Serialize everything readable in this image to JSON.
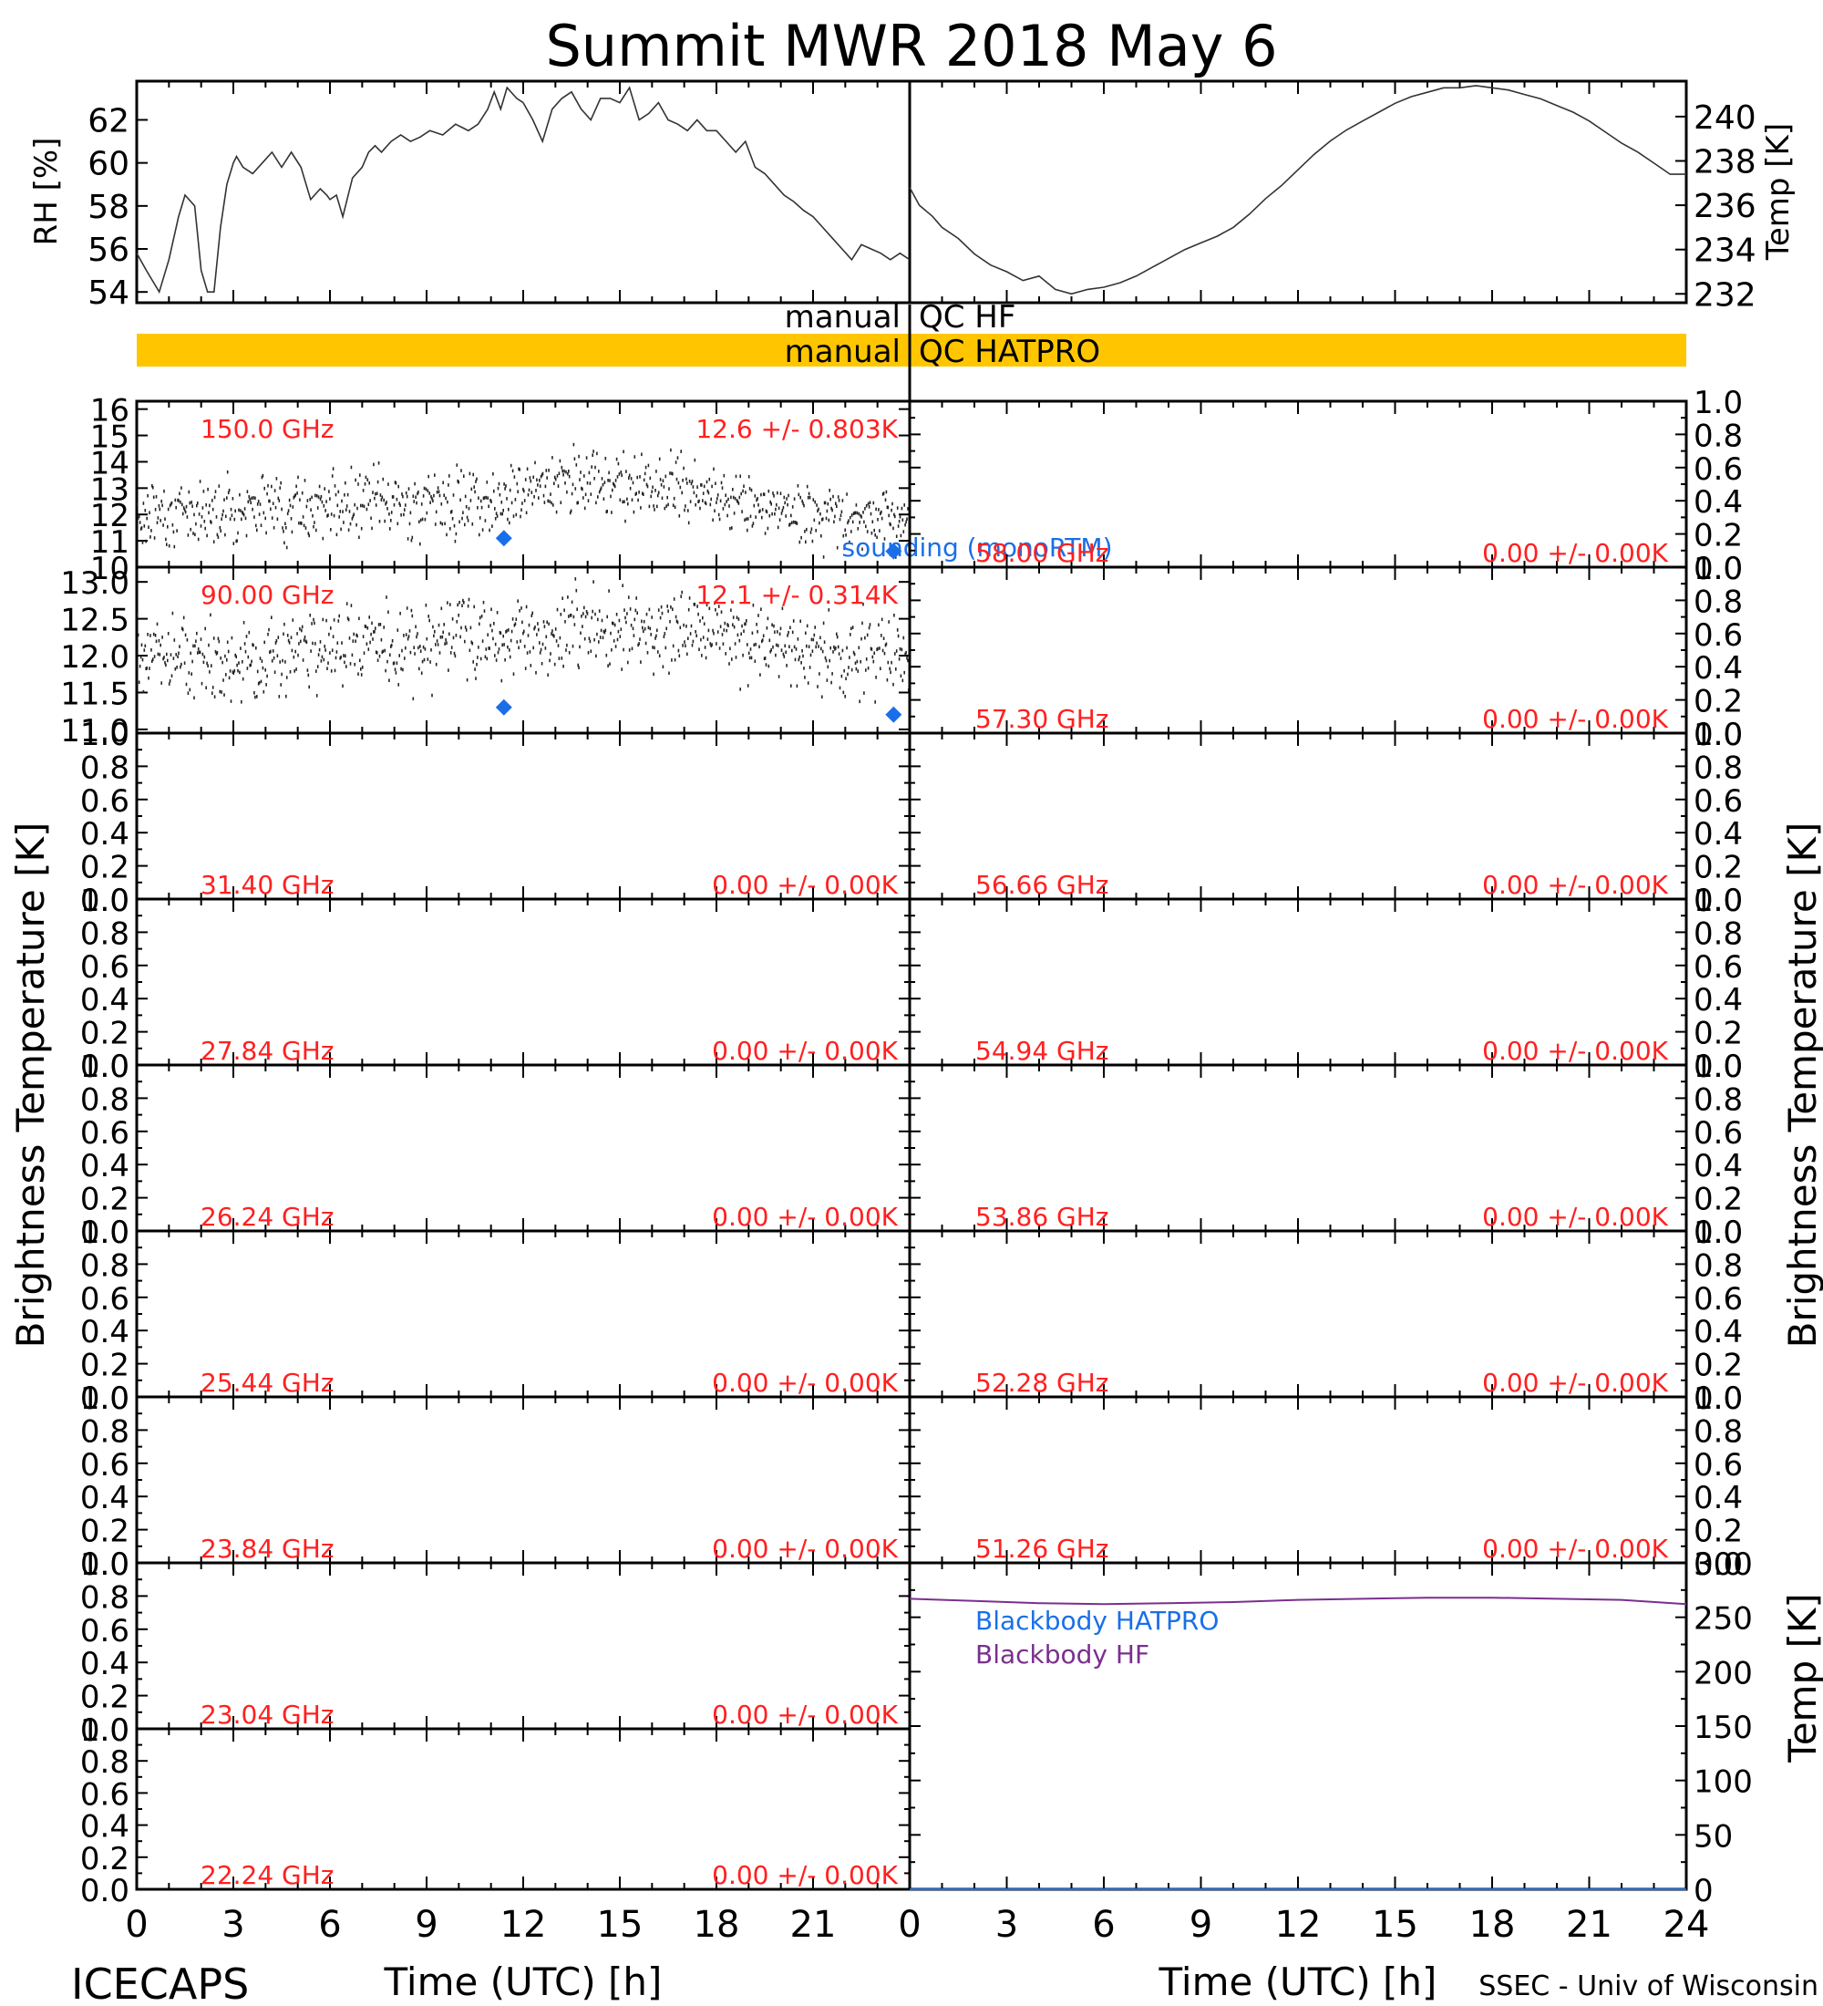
{
  "title": "Summit MWR 2018 May  6",
  "footer": {
    "left": "ICECAPS",
    "right": "SSEC - Univ of Wisconsin"
  },
  "colors": {
    "qc_bar": "#ffc600",
    "annotation": "#ff2020",
    "sounding": "#1a6fe8",
    "blackbody_hf": "#7a2f8f",
    "trace": "#000000"
  },
  "chart_data": [
    {
      "type": "line",
      "panel": "rh",
      "ylabel": "RH [%]",
      "ylim": [
        53.5,
        63.8
      ],
      "yticks": [
        54,
        56,
        58,
        60,
        62
      ],
      "xlim": [
        0,
        12
      ],
      "x": [
        0,
        0.3,
        0.7,
        1.0,
        1.3,
        1.5,
        1.8,
        2.0,
        2.2,
        2.4,
        2.6,
        2.8,
        3.0,
        3.1,
        3.3,
        3.6,
        3.9,
        4.2,
        4.5,
        4.8,
        5.1,
        5.4,
        5.7,
        5.9,
        6.0,
        6.2,
        6.4,
        6.7,
        7.0,
        7.2,
        7.4,
        7.6,
        7.9,
        8.2,
        8.5,
        8.8,
        9.1,
        9.5,
        9.9,
        10.3,
        10.6,
        10.9,
        11.1,
        11.3,
        11.5,
        11.8,
        12.0
      ],
      "y": [
        55.8,
        55.0,
        54.0,
        55.5,
        57.5,
        58.5,
        58.0,
        55.0,
        54.0,
        54.0,
        57.0,
        59.0,
        60.0,
        60.3,
        59.8,
        59.5,
        60.0,
        60.5,
        59.8,
        60.5,
        59.8,
        58.3,
        58.8,
        58.5,
        58.3,
        58.5,
        57.5,
        59.3,
        59.8,
        60.5,
        60.8,
        60.5,
        61.0,
        61.3,
        61.0,
        61.2,
        61.5,
        61.3,
        61.8,
        61.5,
        61.8,
        62.5,
        63.3,
        62.5,
        63.5,
        63.0,
        62.8
      ]
    },
    {
      "type": "line",
      "panel": "rh_right",
      "xlim": [
        12,
        24
      ],
      "ylim": [
        53.5,
        63.8
      ],
      "x": [
        12.0,
        12.3,
        12.6,
        12.9,
        13.2,
        13.5,
        13.8,
        14.1,
        14.4,
        14.7,
        15.0,
        15.3,
        15.6,
        15.9,
        16.2,
        16.5,
        16.8,
        17.1,
        17.4,
        17.7,
        18.0,
        18.3,
        18.6,
        18.9,
        19.2,
        19.5,
        19.8,
        20.1,
        20.4,
        20.7,
        21.0,
        21.3,
        21.6,
        21.9,
        22.2,
        22.5,
        22.8,
        23.1,
        23.4,
        23.7,
        24.0
      ],
      "y": [
        62.8,
        62.0,
        61.0,
        62.5,
        63.0,
        63.3,
        62.5,
        62.0,
        63.0,
        63.0,
        62.8,
        63.5,
        62.0,
        62.3,
        62.8,
        62.0,
        61.8,
        61.5,
        62.0,
        61.5,
        61.5,
        61.0,
        60.5,
        61.0,
        59.8,
        59.5,
        59.0,
        58.5,
        58.2,
        57.8,
        57.5,
        57.0,
        56.5,
        56.0,
        55.5,
        56.2,
        56.0,
        55.8,
        55.5,
        55.8,
        55.5
      ]
    },
    {
      "type": "line",
      "panel": "temp",
      "ylabel": "Temp [K]",
      "ylim": [
        231.6,
        241.6
      ],
      "yticks": [
        232,
        234,
        236,
        238,
        240
      ],
      "xlim": [
        0,
        24
      ],
      "x": [
        0,
        0.3,
        0.7,
        1.0,
        1.5,
        2.0,
        2.5,
        3.0,
        3.5,
        4.0,
        4.5,
        5.0,
        5.5,
        6.0,
        6.5,
        7.0,
        7.5,
        8.0,
        8.5,
        9.0,
        9.5,
        10.0,
        10.5,
        11.0,
        11.5,
        12.0,
        12.5,
        13.0,
        13.5,
        14.0,
        14.5,
        15.0,
        15.5,
        16.0,
        16.5,
        17.0,
        17.5,
        18.0,
        18.5,
        19.0,
        19.5,
        20.0,
        20.5,
        21.0,
        21.5,
        22.0,
        22.5,
        23.0,
        23.5,
        24.0
      ],
      "y": [
        236.8,
        236.0,
        235.5,
        235.0,
        234.5,
        233.8,
        233.3,
        233.0,
        232.6,
        232.8,
        232.2,
        232.0,
        232.2,
        232.3,
        232.5,
        232.8,
        233.2,
        233.6,
        234.0,
        234.3,
        234.6,
        235.0,
        235.6,
        236.3,
        236.9,
        237.6,
        238.3,
        238.9,
        239.4,
        239.8,
        240.2,
        240.6,
        240.9,
        241.1,
        241.3,
        241.3,
        241.4,
        241.3,
        241.2,
        241.0,
        240.8,
        240.5,
        240.2,
        239.8,
        239.3,
        238.8,
        238.4,
        237.9,
        237.4,
        237.4
      ]
    },
    {
      "type": "bar",
      "panel": "qc",
      "rows": [
        {
          "left": "manual",
          "right": "QC HF",
          "filled": false
        },
        {
          "left": "manual",
          "right": "QC HATPRO",
          "filled": true
        }
      ]
    },
    {
      "type": "scatter",
      "panel": "150 GHz",
      "label": "150.0 GHz",
      "stats": "12.6 +/- 0.803K",
      "ylim": [
        10,
        16.3
      ],
      "yticks": [
        10,
        11,
        12,
        13,
        14,
        15,
        16
      ],
      "noise": {
        "base": [
          [
            0,
            12.0
          ],
          [
            3,
            12.3
          ],
          [
            6,
            12.4
          ],
          [
            10,
            12.5
          ],
          [
            14,
            13.4
          ],
          [
            18,
            12.7
          ],
          [
            21,
            12.1
          ],
          [
            24,
            11.8
          ]
        ],
        "spread": 0.9,
        "count": 900
      },
      "sounding": {
        "x": [
          11.4,
          23.5
        ],
        "y": [
          11.1,
          10.6
        ]
      },
      "sounding_label": "sounding (monoRTM)"
    },
    {
      "type": "scatter",
      "panel": "90 GHz",
      "label": "90.00 GHz",
      "stats": "12.1 +/- 0.314K",
      "ylim": [
        10.95,
        13.2
      ],
      "yticks": [
        11.0,
        11.5,
        12.0,
        12.5,
        13.0
      ],
      "noise": {
        "base": [
          [
            0,
            12.0
          ],
          [
            3,
            11.9
          ],
          [
            6,
            12.2
          ],
          [
            10,
            12.2
          ],
          [
            14,
            12.4
          ],
          [
            18,
            12.3
          ],
          [
            21,
            12.1
          ],
          [
            24,
            11.9
          ]
        ],
        "spread": 0.42,
        "count": 900
      },
      "sounding": {
        "x": [
          11.4,
          23.5
        ],
        "y": [
          11.3,
          11.2
        ]
      }
    },
    {
      "type": "table",
      "panel": "channel-grid",
      "ylabel": "Brightness Temperature [K]",
      "yticks": [
        0.0,
        0.2,
        0.4,
        0.6,
        0.8,
        1.0
      ],
      "yticks_fmt": [
        "0.0",
        "0.2",
        "0.4",
        "0.6",
        "0.8",
        "1.0"
      ],
      "xticks": [
        0,
        3,
        6,
        9,
        12,
        15,
        18,
        21,
        24
      ],
      "xlabel": "Time (UTC) [h]",
      "left": [
        {
          "label": "31.40 GHz",
          "stats": "0.00 +/- 0.00K"
        },
        {
          "label": "27.84 GHz",
          "stats": "0.00 +/- 0.00K"
        },
        {
          "label": "26.24 GHz",
          "stats": "0.00 +/- 0.00K"
        },
        {
          "label": "25.44 GHz",
          "stats": "0.00 +/- 0.00K"
        },
        {
          "label": "23.84 GHz",
          "stats": "0.00 +/- 0.00K"
        },
        {
          "label": "23.04 GHz",
          "stats": "0.00 +/- 0.00K"
        },
        {
          "label": "22.24 GHz",
          "stats": "0.00 +/- 0.00K"
        }
      ],
      "right": [
        {
          "label": "58.00 GHz",
          "stats": "0.00 +/- 0.00K"
        },
        {
          "label": "57.30 GHz",
          "stats": "0.00 +/- 0.00K"
        },
        {
          "label": "56.66 GHz",
          "stats": "0.00 +/- 0.00K"
        },
        {
          "label": "54.94 GHz",
          "stats": "0.00 +/- 0.00K"
        },
        {
          "label": "53.86 GHz",
          "stats": "0.00 +/- 0.00K"
        },
        {
          "label": "52.28 GHz",
          "stats": "0.00 +/- 0.00K"
        },
        {
          "label": "51.26 GHz",
          "stats": "0.00 +/- 0.00K"
        }
      ]
    },
    {
      "type": "line",
      "panel": "blackbody",
      "ylabel": "Temp [K]",
      "ylim": [
        0,
        300
      ],
      "yticks": [
        0,
        50,
        100,
        150,
        200,
        250,
        300
      ],
      "xlim": [
        0,
        24
      ],
      "series": [
        {
          "name": "Blackbody HATPRO",
          "x": [
            0,
            24
          ],
          "y": [
            0,
            0
          ]
        },
        {
          "name": "Blackbody HF",
          "x": [
            0,
            2,
            4,
            6,
            8,
            10,
            12,
            14,
            16,
            18,
            20,
            22,
            24
          ],
          "y": [
            267,
            265,
            263,
            262,
            263,
            264,
            266,
            267,
            268,
            268,
            267,
            266,
            262
          ]
        }
      ]
    }
  ]
}
